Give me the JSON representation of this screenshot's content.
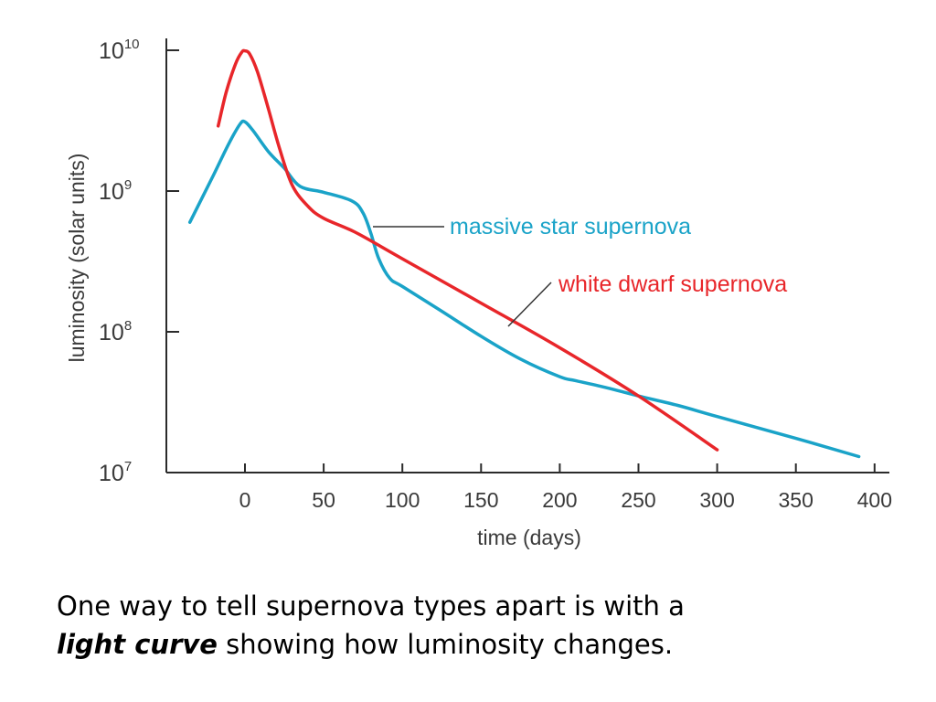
{
  "chart_data": {
    "type": "line",
    "title": "",
    "xlabel": "time (days)",
    "ylabel": "luminosity (solar units)",
    "xlim": [
      -45,
      405
    ],
    "ylim": [
      10000000,
      10000000000
    ],
    "yscale": "log",
    "x_ticks": [
      "0",
      "50",
      "100",
      "150",
      "200",
      "250",
      "300",
      "350",
      "400"
    ],
    "y_ticks": [
      {
        "base": "10",
        "exp": "10"
      },
      {
        "base": "10",
        "exp": "9"
      },
      {
        "base": "10",
        "exp": "8"
      },
      {
        "base": "10",
        "exp": "7"
      }
    ],
    "grid": false,
    "series": [
      {
        "name": "massive star supernova",
        "color": "#1aa3c8",
        "points": [
          [
            -35,
            600000000
          ],
          [
            -20,
            1300000000
          ],
          [
            -10,
            2200000000
          ],
          [
            -3,
            3000000000
          ],
          [
            0,
            3100000000
          ],
          [
            5,
            2700000000
          ],
          [
            15,
            1900000000
          ],
          [
            25,
            1450000000
          ],
          [
            35,
            1080000000
          ],
          [
            50,
            980000000
          ],
          [
            68,
            850000000
          ],
          [
            75,
            700000000
          ],
          [
            80,
            500000000
          ],
          [
            85,
            330000000
          ],
          [
            92,
            240000000
          ],
          [
            100,
            210000000
          ],
          [
            125,
            140000000
          ],
          [
            150,
            93000000
          ],
          [
            175,
            64000000
          ],
          [
            200,
            48000000
          ],
          [
            210,
            45000000
          ],
          [
            230,
            40000000
          ],
          [
            250,
            35000000
          ],
          [
            275,
            30000000
          ],
          [
            300,
            25000000
          ],
          [
            350,
            17500000
          ],
          [
            390,
            13000000
          ]
        ]
      },
      {
        "name": "white dwarf supernova",
        "color": "#e8262a",
        "points": [
          [
            -17,
            2900000000
          ],
          [
            -12,
            5000000000
          ],
          [
            -6,
            8000000000
          ],
          [
            -2,
            9700000000
          ],
          [
            0,
            9900000000
          ],
          [
            3,
            9400000000
          ],
          [
            8,
            7000000000
          ],
          [
            15,
            3800000000
          ],
          [
            22,
            2000000000
          ],
          [
            30,
            1100000000
          ],
          [
            40,
            780000000
          ],
          [
            50,
            640000000
          ],
          [
            70,
            510000000
          ],
          [
            100,
            330000000
          ],
          [
            150,
            160000000
          ],
          [
            200,
            77000000
          ],
          [
            250,
            35000000
          ],
          [
            300,
            14500000
          ]
        ]
      }
    ],
    "annotations": [
      {
        "text": "massive star supernova",
        "series": 0
      },
      {
        "text": "white dwarf supernova",
        "series": 1
      }
    ]
  },
  "caption": {
    "line1": "One way to tell supernova types apart is with a",
    "emphasis": "light curve",
    "line2_rest": " showing how luminosity changes."
  }
}
